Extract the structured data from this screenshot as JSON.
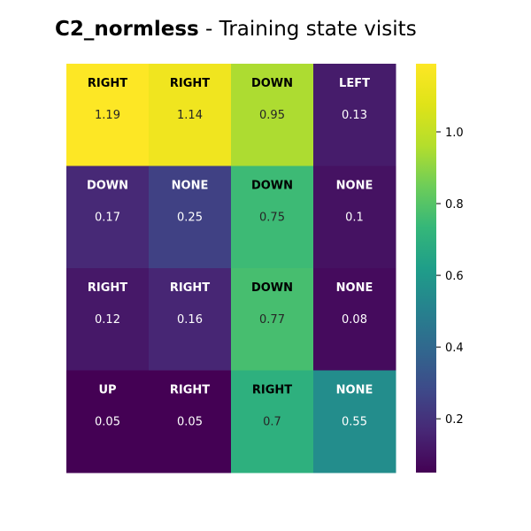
{
  "chart_data": {
    "type": "heatmap",
    "title_bold": "C2_normless",
    "title_rest": " - Training state visits",
    "rows": 4,
    "cols": 4,
    "cells": [
      [
        {
          "action": "RIGHT",
          "value": 1.19
        },
        {
          "action": "RIGHT",
          "value": 1.14
        },
        {
          "action": "DOWN",
          "value": 0.95
        },
        {
          "action": "LEFT",
          "value": 0.13
        }
      ],
      [
        {
          "action": "DOWN",
          "value": 0.17
        },
        {
          "action": "NONE",
          "value": 0.25
        },
        {
          "action": "DOWN",
          "value": 0.75
        },
        {
          "action": "NONE",
          "value": 0.1
        }
      ],
      [
        {
          "action": "RIGHT",
          "value": 0.12
        },
        {
          "action": "RIGHT",
          "value": 0.16
        },
        {
          "action": "DOWN",
          "value": 0.77
        },
        {
          "action": "NONE",
          "value": 0.08
        }
      ],
      [
        {
          "action": "UP",
          "value": 0.05
        },
        {
          "action": "RIGHT",
          "value": 0.05
        },
        {
          "action": "RIGHT",
          "value": 0.7
        },
        {
          "action": "NONE",
          "value": 0.55
        }
      ]
    ],
    "value_labels": [
      [
        "1.19",
        "1.14",
        "0.95",
        "0.13"
      ],
      [
        "0.17",
        "0.25",
        "0.75",
        "0.1"
      ],
      [
        "0.12",
        "0.16",
        "0.77",
        "0.08"
      ],
      [
        "0.05",
        "0.05",
        "0.7",
        "0.55"
      ]
    ],
    "colormap": "viridis",
    "vmin": 0.05,
    "vmax": 1.19,
    "colorbar_ticks": [
      1.0,
      0.8,
      0.6,
      0.4,
      0.2
    ],
    "colorbar_tick_labels": [
      "1.0",
      "0.8",
      "0.6",
      "0.4",
      "0.2"
    ]
  }
}
